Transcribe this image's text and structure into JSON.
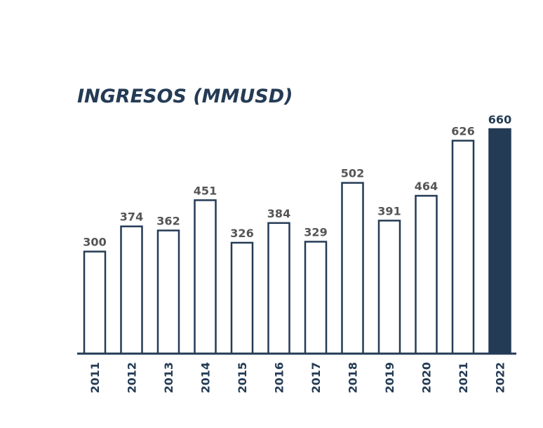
{
  "chart_data": {
    "type": "bar",
    "title": "INGRESOS (MMUSD)",
    "categories": [
      "2011",
      "2012",
      "2013",
      "2014",
      "2015",
      "2016",
      "2017",
      "2018",
      "2019",
      "2020",
      "2021",
      "2022"
    ],
    "values": [
      300,
      374,
      362,
      451,
      326,
      384,
      329,
      502,
      391,
      464,
      626,
      660
    ],
    "value_labels": [
      "300",
      "374",
      "362",
      "451",
      "326",
      "384",
      "329",
      "502",
      "391",
      "464",
      "626",
      "660"
    ],
    "highlight_index": 11,
    "xlabel": "",
    "ylabel": "",
    "ylim": [
      0,
      660
    ],
    "grid": false,
    "legend": "none",
    "colors": {
      "bar_fill": "#ffffff",
      "bar_stroke": "#243b55",
      "highlight_fill": "#243b55",
      "axis": "#243b55",
      "title": "#243b55",
      "value_label": "#555555"
    }
  }
}
